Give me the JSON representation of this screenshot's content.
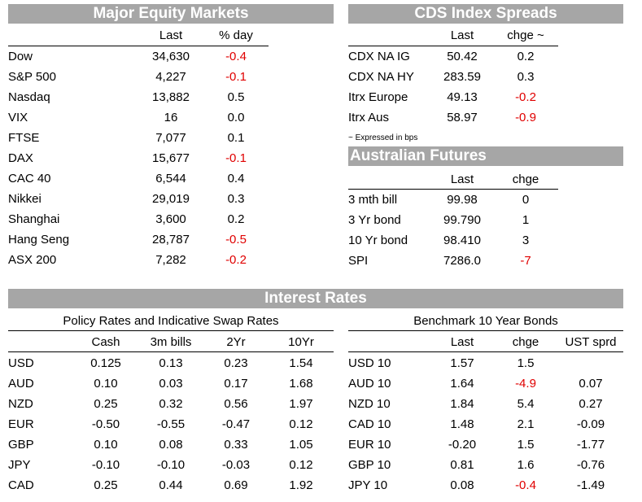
{
  "equity": {
    "title": "Major Equity Markets",
    "headers": [
      "Last",
      "% day"
    ],
    "rows": [
      {
        "name": "Dow",
        "last": "34,630",
        "chg": "-0.4",
        "neg": true
      },
      {
        "name": "S&P 500",
        "last": "4,227",
        "chg": "-0.1",
        "neg": true
      },
      {
        "name": "Nasdaq",
        "last": "13,882",
        "chg": "0.5",
        "neg": false
      },
      {
        "name": "VIX",
        "last": "16",
        "chg": "0.0",
        "neg": false
      },
      {
        "name": "FTSE",
        "last": "7,077",
        "chg": "0.1",
        "neg": false
      },
      {
        "name": "DAX",
        "last": "15,677",
        "chg": "-0.1",
        "neg": true
      },
      {
        "name": "CAC 40",
        "last": "6,544",
        "chg": "0.4",
        "neg": false
      },
      {
        "name": "Nikkei",
        "last": "29,019",
        "chg": "0.3",
        "neg": false
      },
      {
        "name": "Shanghai",
        "last": "3,600",
        "chg": "0.2",
        "neg": false
      },
      {
        "name": "Hang Seng",
        "last": "28,787",
        "chg": "-0.5",
        "neg": true
      },
      {
        "name": "ASX 200",
        "last": "7,282",
        "chg": "-0.2",
        "neg": true
      }
    ]
  },
  "cds": {
    "title": "CDS Index Spreads",
    "headers": [
      "Last",
      "chge ~"
    ],
    "rows": [
      {
        "name": "CDX NA IG",
        "last": "50.42",
        "chg": "0.2",
        "neg": false
      },
      {
        "name": "CDX NA HY",
        "last": "283.59",
        "chg": "0.3",
        "neg": false
      },
      {
        "name": "Itrx Europe",
        "last": "49.13",
        "chg": "-0.2",
        "neg": true
      },
      {
        "name": "Itrx Aus",
        "last": "58.97",
        "chg": "-0.9",
        "neg": true
      }
    ],
    "note": "~ Expressed in bps"
  },
  "futures": {
    "title": "Australian Futures",
    "headers": [
      "Last",
      "chge"
    ],
    "rows": [
      {
        "name": "3 mth bill",
        "last": "99.98",
        "chg": "0",
        "neg": false
      },
      {
        "name": "3 Yr bond",
        "last": "99.790",
        "chg": "1",
        "neg": false
      },
      {
        "name": "10 Yr bond",
        "last": "98.410",
        "chg": "3",
        "neg": false
      },
      {
        "name": "SPI",
        "last": "7286.0",
        "chg": "-7",
        "neg": true
      }
    ]
  },
  "rates": {
    "title": "Interest Rates",
    "policy": {
      "title": "Policy Rates and Indicative Swap Rates",
      "headers": [
        "Cash",
        "3m bills",
        "2Yr",
        "10Yr"
      ],
      "rows": [
        {
          "name": "USD",
          "vals": [
            "0.125",
            "0.13",
            "0.23",
            "1.54"
          ]
        },
        {
          "name": "AUD",
          "vals": [
            "0.10",
            "0.03",
            "0.17",
            "1.68"
          ]
        },
        {
          "name": "NZD",
          "vals": [
            "0.25",
            "0.32",
            "0.56",
            "1.97"
          ]
        },
        {
          "name": "EUR",
          "vals": [
            "-0.50",
            "-0.55",
            "-0.47",
            "0.12"
          ]
        },
        {
          "name": "GBP",
          "vals": [
            "0.10",
            "0.08",
            "0.33",
            "1.05"
          ]
        },
        {
          "name": "JPY",
          "vals": [
            "-0.10",
            "-0.10",
            "-0.03",
            "0.12"
          ]
        },
        {
          "name": "CAD",
          "vals": [
            "0.25",
            "0.44",
            "0.69",
            "1.92"
          ]
        }
      ]
    },
    "bonds": {
      "title": "Benchmark 10 Year Bonds",
      "headers": [
        "Last",
        "chge",
        "UST sprd"
      ],
      "rows": [
        {
          "name": "USD 10",
          "last": "1.57",
          "chg": "1.5",
          "neg": false,
          "sprd": ""
        },
        {
          "name": "AUD 10",
          "last": "1.64",
          "chg": "-4.9",
          "neg": true,
          "sprd": "0.07"
        },
        {
          "name": "NZD 10",
          "last": "1.84",
          "chg": "5.4",
          "neg": false,
          "sprd": "0.27"
        },
        {
          "name": "CAD 10",
          "last": "1.48",
          "chg": "2.1",
          "neg": false,
          "sprd": "-0.09"
        },
        {
          "name": "EUR 10",
          "last": "-0.20",
          "chg": "1.5",
          "neg": false,
          "sprd": "-1.77"
        },
        {
          "name": "GBP 10",
          "last": "0.81",
          "chg": "1.6",
          "neg": false,
          "sprd": "-0.76"
        },
        {
          "name": "JPY 10",
          "last": "0.08",
          "chg": "-0.4",
          "neg": true,
          "sprd": "-1.49"
        }
      ]
    }
  }
}
